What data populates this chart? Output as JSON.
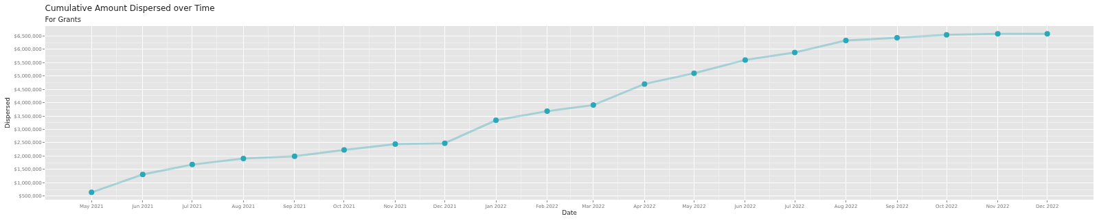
{
  "chart_data": {
    "type": "line",
    "title": "Cumulative Amount Dispersed over Time",
    "subtitle": "For Grants",
    "xlabel": "Date",
    "ylabel": "Dispersed",
    "x": [
      "2021-05-01",
      "2021-06-01",
      "2021-07-01",
      "2021-08-01",
      "2021-09-01",
      "2021-10-01",
      "2021-11-01",
      "2021-12-01",
      "2022-01-01",
      "2022-02-01",
      "2022-03-01",
      "2022-04-01",
      "2022-05-01",
      "2022-06-01",
      "2022-07-01",
      "2022-08-01",
      "2022-09-01",
      "2022-10-01",
      "2022-11-01",
      "2022-12-01"
    ],
    "series": [
      {
        "color": "#2aa7b8",
        "values": [
          640000,
          1310000,
          1680000,
          1910000,
          1990000,
          2230000,
          2450000,
          2480000,
          3340000,
          3680000,
          3910000,
          4700000,
          5100000,
          5600000,
          5880000,
          6330000,
          6430000,
          6540000,
          6580000,
          6580000
        ]
      }
    ],
    "xlim": [
      "2021-04-03",
      "2022-12-29"
    ],
    "xticks": [
      {
        "value": "2021-05-01",
        "label": "May 2021"
      },
      {
        "value": "2021-06-01",
        "label": "Jun 2021"
      },
      {
        "value": "2021-07-01",
        "label": "Jul 2021"
      },
      {
        "value": "2021-08-01",
        "label": "Aug 2021"
      },
      {
        "value": "2021-09-01",
        "label": "Sep 2021"
      },
      {
        "value": "2021-10-01",
        "label": "Oct 2021"
      },
      {
        "value": "2021-11-01",
        "label": "Nov 2021"
      },
      {
        "value": "2021-12-01",
        "label": "Dec 2021"
      },
      {
        "value": "2022-01-01",
        "label": "Jan 2022"
      },
      {
        "value": "2022-02-01",
        "label": "Feb 2022"
      },
      {
        "value": "2022-03-01",
        "label": "Mar 2022"
      },
      {
        "value": "2022-04-01",
        "label": "Apr 2022"
      },
      {
        "value": "2022-05-01",
        "label": "May 2022"
      },
      {
        "value": "2022-06-01",
        "label": "Jun 2022"
      },
      {
        "value": "2022-07-01",
        "label": "Jul 2022"
      },
      {
        "value": "2022-08-01",
        "label": "Aug 2022"
      },
      {
        "value": "2022-09-01",
        "label": "Sep 2022"
      },
      {
        "value": "2022-10-01",
        "label": "Oct 2022"
      },
      {
        "value": "2022-11-01",
        "label": "Nov 2022"
      },
      {
        "value": "2022-12-01",
        "label": "Dec 2022"
      }
    ],
    "ylim": [
      365000,
      6870000
    ],
    "yticks": [
      {
        "value": 500000,
        "label": "$500,000"
      },
      {
        "value": 1000000,
        "label": "$1,000,000"
      },
      {
        "value": 1500000,
        "label": "$1,500,000"
      },
      {
        "value": 2000000,
        "label": "$2,000,000"
      },
      {
        "value": 2500000,
        "label": "$2,500,000"
      },
      {
        "value": 3000000,
        "label": "$3,000,000"
      },
      {
        "value": 3500000,
        "label": "$3,500,000"
      },
      {
        "value": 4000000,
        "label": "$4,000,000"
      },
      {
        "value": 4500000,
        "label": "$4,500,000"
      },
      {
        "value": 5000000,
        "label": "$5,000,000"
      },
      {
        "value": 5500000,
        "label": "$5,500,000"
      },
      {
        "value": 6000000,
        "label": "$6,000,000"
      },
      {
        "value": 6500000,
        "label": "$6,500,000"
      }
    ],
    "grid": true,
    "marker": "circle",
    "line_style": "solid"
  }
}
